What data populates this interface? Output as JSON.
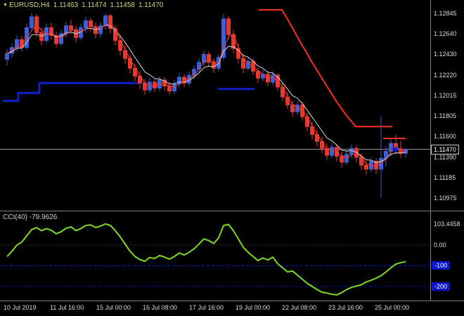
{
  "header": {
    "dropdown_icon": "▼",
    "symbol": "EURUSD,H4",
    "open": "1.11463",
    "high": "1.11474",
    "low": "1.11458",
    "close": "1.11470"
  },
  "subwindow": {
    "label": "CCI(40) -79.9626"
  },
  "price_axis": {
    "current": "1.11470"
  },
  "cci_axis": {
    "plain_labels": [
      {
        "text": "103.4458",
        "value": 103.4458
      },
      {
        "text": "0.00",
        "value": 0
      }
    ],
    "boxed_labels": [
      {
        "text": "-100",
        "value": -100
      },
      {
        "text": "-200",
        "value": -200
      }
    ]
  },
  "colors": {
    "bg": "#000000",
    "bull": "#3a5fd9",
    "bear": "#e8372c",
    "ma_fast": "#ff3b2e",
    "ma_slow": "#d8d8d8",
    "resistance": "#ff2d20",
    "support": "#1020c8",
    "cci_line": "#7ddc1f",
    "level_box": "#0a14c8",
    "current_line": "#9c9c9c",
    "separator": "#7e7e7e",
    "axis_text": "#dcdcdc",
    "readout_text": "#d6d67a"
  },
  "chart_data": {
    "type": "candlestick",
    "symbol": "EURUSD",
    "timeframe": "H4",
    "title": "EURUSD,H4 1.11463 1.11474 1.11458 1.11470",
    "y_range": [
      1.1085,
      1.1298
    ],
    "current_price": 1.1147,
    "price_ticks": [
      "1.12845",
      "1.12640",
      "1.12430",
      "1.12220",
      "1.12015",
      "1.11805",
      "1.11600",
      "1.11390",
      "1.11185",
      "1.10975"
    ],
    "time_ticks": [
      "10 Jul 2019",
      "11 Jul 16:00",
      "15 Jul 00:00",
      "16 Jul 08:00",
      "17 Jul 16:00",
      "19 Jul 00:00",
      "22 Jul 08:00",
      "23 Jul 16:00",
      "25 Jul 00:00"
    ],
    "candles": [
      [
        1.1238,
        1.1248,
        1.1232,
        1.1244
      ],
      [
        1.1244,
        1.1254,
        1.124,
        1.125
      ],
      [
        1.125,
        1.1262,
        1.1246,
        1.1258
      ],
      [
        1.1258,
        1.1262,
        1.1246,
        1.125
      ],
      [
        1.125,
        1.1274,
        1.1248,
        1.127
      ],
      [
        1.127,
        1.1285,
        1.1266,
        1.1281
      ],
      [
        1.1281,
        1.1284,
        1.126,
        1.1265
      ],
      [
        1.1265,
        1.127,
        1.1252,
        1.1257
      ],
      [
        1.1257,
        1.1274,
        1.1255,
        1.127
      ],
      [
        1.127,
        1.1275,
        1.1258,
        1.1262
      ],
      [
        1.1262,
        1.1266,
        1.125,
        1.1254
      ],
      [
        1.1254,
        1.1268,
        1.1252,
        1.1264
      ],
      [
        1.1264,
        1.1276,
        1.126,
        1.1272
      ],
      [
        1.1272,
        1.1278,
        1.1263,
        1.1268
      ],
      [
        1.1268,
        1.1272,
        1.1255,
        1.126
      ],
      [
        1.126,
        1.1274,
        1.1257,
        1.127
      ],
      [
        1.127,
        1.1281,
        1.1265,
        1.1277
      ],
      [
        1.1277,
        1.128,
        1.1266,
        1.1271
      ],
      [
        1.1271,
        1.1275,
        1.1259,
        1.1264
      ],
      [
        1.1264,
        1.1276,
        1.126,
        1.1272
      ],
      [
        1.1272,
        1.12845,
        1.1268,
        1.1282
      ],
      [
        1.1282,
        1.1284,
        1.1264,
        1.1269
      ],
      [
        1.1269,
        1.1272,
        1.1252,
        1.1257
      ],
      [
        1.1257,
        1.1262,
        1.1242,
        1.1247
      ],
      [
        1.1247,
        1.1252,
        1.1234,
        1.1239
      ],
      [
        1.1239,
        1.1243,
        1.1224,
        1.1229
      ],
      [
        1.1229,
        1.1234,
        1.1216,
        1.1221
      ],
      [
        1.1221,
        1.1226,
        1.1208,
        1.1214
      ],
      [
        1.1214,
        1.1218,
        1.1202,
        1.1207
      ],
      [
        1.1207,
        1.1219,
        1.1204,
        1.1215
      ],
      [
        1.1215,
        1.1218,
        1.1205,
        1.1209
      ],
      [
        1.1209,
        1.1221,
        1.1206,
        1.1217
      ],
      [
        1.1217,
        1.122,
        1.1207,
        1.1211
      ],
      [
        1.1211,
        1.1215,
        1.1202,
        1.1206
      ],
      [
        1.1206,
        1.1217,
        1.1203,
        1.1213
      ],
      [
        1.1213,
        1.1224,
        1.121,
        1.122
      ],
      [
        1.122,
        1.1223,
        1.121,
        1.1214
      ],
      [
        1.1214,
        1.1226,
        1.1211,
        1.1222
      ],
      [
        1.1222,
        1.1232,
        1.1218,
        1.1228
      ],
      [
        1.1228,
        1.1239,
        1.1224,
        1.1235
      ],
      [
        1.1235,
        1.1247,
        1.1231,
        1.1243
      ],
      [
        1.1243,
        1.1246,
        1.123,
        1.1235
      ],
      [
        1.1235,
        1.1239,
        1.1224,
        1.1229
      ],
      [
        1.1229,
        1.1243,
        1.1226,
        1.124
      ],
      [
        1.124,
        1.1284,
        1.1237,
        1.1279
      ],
      [
        1.1279,
        1.1282,
        1.1258,
        1.1263
      ],
      [
        1.1263,
        1.1268,
        1.1244,
        1.1249
      ],
      [
        1.1249,
        1.1254,
        1.1234,
        1.1239
      ],
      [
        1.1239,
        1.1243,
        1.1224,
        1.1229
      ],
      [
        1.1229,
        1.124,
        1.1226,
        1.1236
      ],
      [
        1.1236,
        1.1239,
        1.1222,
        1.1226
      ],
      [
        1.1226,
        1.123,
        1.1214,
        1.1219
      ],
      [
        1.1219,
        1.1228,
        1.1216,
        1.1223
      ],
      [
        1.1223,
        1.1226,
        1.1211,
        1.1215
      ],
      [
        1.1215,
        1.1226,
        1.1212,
        1.1222
      ],
      [
        1.1222,
        1.1224,
        1.1206,
        1.121
      ],
      [
        1.121,
        1.1214,
        1.1196,
        1.12
      ],
      [
        1.12,
        1.1205,
        1.1188,
        1.1192
      ],
      [
        1.1192,
        1.1197,
        1.118,
        1.1185
      ],
      [
        1.1185,
        1.1196,
        1.1182,
        1.1192
      ],
      [
        1.1192,
        1.1195,
        1.1176,
        1.118
      ],
      [
        1.118,
        1.1184,
        1.1165,
        1.117
      ],
      [
        1.117,
        1.1175,
        1.1157,
        1.1162
      ],
      [
        1.1162,
        1.1167,
        1.115,
        1.1155
      ],
      [
        1.1155,
        1.116,
        1.1143,
        1.1148
      ],
      [
        1.1148,
        1.1153,
        1.1136,
        1.1141
      ],
      [
        1.1141,
        1.1153,
        1.1138,
        1.1149
      ],
      [
        1.1149,
        1.1152,
        1.1135,
        1.114
      ],
      [
        1.114,
        1.1145,
        1.1128,
        1.1134
      ],
      [
        1.1134,
        1.1146,
        1.1131,
        1.1142
      ],
      [
        1.1142,
        1.1152,
        1.1138,
        1.1148
      ],
      [
        1.1148,
        1.1151,
        1.1134,
        1.1139
      ],
      [
        1.1139,
        1.1143,
        1.1126,
        1.1131
      ],
      [
        1.1131,
        1.1136,
        1.1121,
        1.1127
      ],
      [
        1.1127,
        1.1139,
        1.1124,
        1.1135
      ],
      [
        1.1135,
        1.1138,
        1.1122,
        1.1127
      ],
      [
        1.1127,
        1.118,
        1.1098,
        1.1138
      ],
      [
        1.1138,
        1.115,
        1.113,
        1.1145
      ],
      [
        1.1145,
        1.1158,
        1.114,
        1.1153
      ],
      [
        1.1153,
        1.1162,
        1.1142,
        1.1147
      ],
      [
        1.1147,
        1.1155,
        1.1138,
        1.1143
      ],
      [
        1.1143,
        1.11474,
        1.11385,
        1.1147
      ]
    ],
    "overlays": {
      "ma_fast_period": 3,
      "ma_slow_period": 6,
      "resistance_polylines": [
        [
          [
            368,
            1.1288
          ],
          [
            401,
            1.1288
          ],
          [
            408,
            1.128
          ],
          [
            415,
            1.1271
          ],
          [
            422,
            1.1262
          ],
          [
            429,
            1.1253
          ],
          [
            436,
            1.1245
          ],
          [
            443,
            1.1236
          ],
          [
            450,
            1.1228
          ],
          [
            457,
            1.122
          ],
          [
            464,
            1.1212
          ],
          [
            471,
            1.1204
          ],
          [
            478,
            1.1196
          ],
          [
            485,
            1.1189
          ],
          [
            492,
            1.1182
          ],
          [
            499,
            1.1176
          ],
          [
            506,
            1.117
          ],
          [
            558,
            1.117
          ]
        ],
        [
          [
            545,
            1.1158
          ],
          [
            577,
            1.1158
          ]
        ]
      ],
      "support_polylines": [
        [
          [
            4,
            1.1196
          ],
          [
            26,
            1.1196
          ],
          [
            26,
            1.1204
          ],
          [
            56,
            1.1204
          ],
          [
            56,
            1.1214
          ],
          [
            200,
            1.1214
          ]
        ],
        [
          [
            310,
            1.1208
          ],
          [
            362,
            1.1208
          ]
        ]
      ],
      "arrow_marker": {
        "x": 556,
        "price": 1.1147
      }
    },
    "indicator": {
      "type": "line",
      "name": "CCI",
      "period": 40,
      "current": -79.9626,
      "y_range": [
        -265,
        160
      ],
      "levels": [
        -100,
        -200
      ],
      "values": [
        -55,
        -30,
        0,
        15,
        45,
        75,
        85,
        70,
        80,
        72,
        55,
        65,
        82,
        88,
        70,
        80,
        95,
        98,
        85,
        92,
        103,
        95,
        70,
        40,
        5,
        -30,
        -55,
        -70,
        -78,
        -60,
        -65,
        -50,
        -58,
        -68,
        -55,
        -38,
        -48,
        -35,
        -18,
        5,
        30,
        22,
        8,
        35,
        95,
        100,
        70,
        30,
        -10,
        -35,
        -55,
        -75,
        -62,
        -72,
        -58,
        -90,
        -110,
        -130,
        -125,
        -145,
        -165,
        -185,
        -200,
        -215,
        -228,
        -232,
        -238,
        -241,
        -230,
        -215,
        -205,
        -198,
        -192,
        -178,
        -170,
        -160,
        -148,
        -130,
        -110,
        -92,
        -85,
        -79.9626
      ]
    }
  }
}
